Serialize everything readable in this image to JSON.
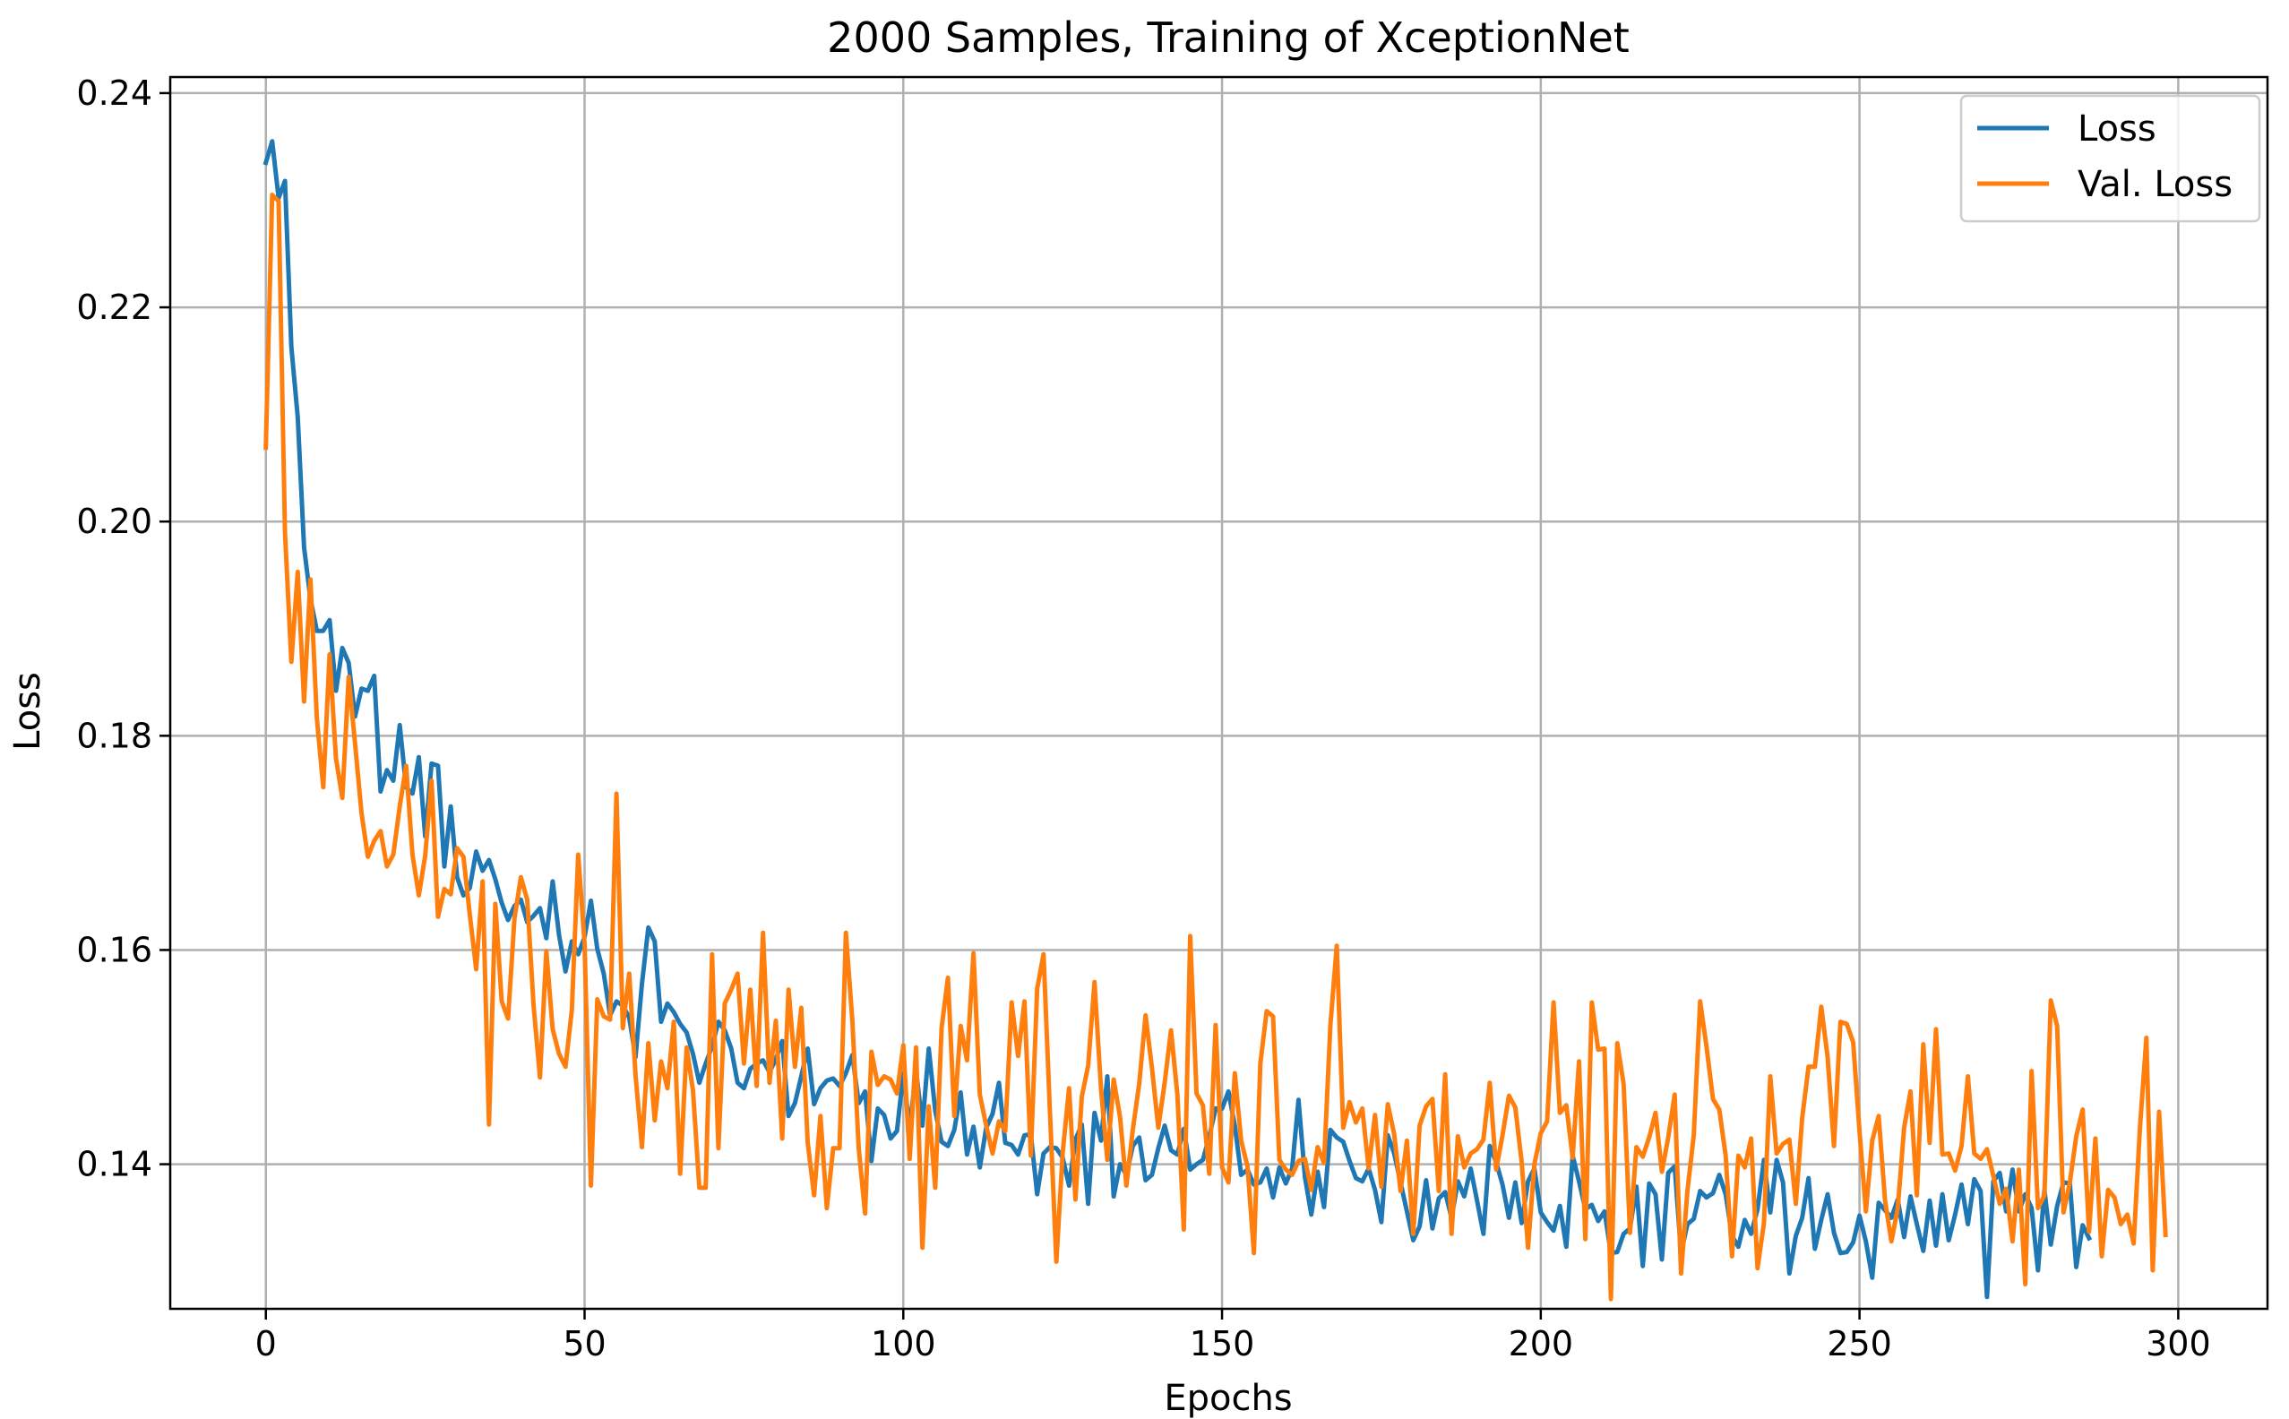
{
  "chart_data": {
    "type": "line",
    "title": "2000 Samples, Training of XceptionNet",
    "xlabel": "Epochs",
    "ylabel": "Loss",
    "xlim": [
      -15,
      314
    ],
    "ylim": [
      0.1265,
      0.2415
    ],
    "xticks": [
      0,
      50,
      100,
      150,
      200,
      250,
      300
    ],
    "yticks": [
      0.14,
      0.16,
      0.18,
      0.2,
      0.22,
      0.24
    ],
    "xtick_labels": [
      "0",
      "50",
      "100",
      "150",
      "200",
      "250",
      "300"
    ],
    "ytick_labels": [
      "0.14",
      "0.16",
      "0.18",
      "0.20",
      "0.22",
      "0.24"
    ],
    "grid": true,
    "legend_position": "top-right",
    "x_start": 0,
    "x_step": 1,
    "series": [
      {
        "name": "Loss",
        "color": "#1f77b4",
        "values": [
          0.2335,
          0.2355,
          0.2302,
          0.2318,
          0.2163,
          0.2098,
          0.1976,
          0.1928,
          0.1898,
          0.1898,
          0.1908,
          0.1842,
          0.1882,
          0.1868,
          0.1818,
          0.1844,
          0.1842,
          0.1856,
          0.1748,
          0.1768,
          0.1758,
          0.181,
          0.1752,
          0.1746,
          0.178,
          0.1706,
          0.1774,
          0.1772,
          0.1678,
          0.1734,
          0.1668,
          0.1651,
          0.1658,
          0.1692,
          0.1674,
          0.1684,
          0.1666,
          0.1644,
          0.1628,
          0.1641,
          0.1647,
          0.1626,
          0.1632,
          0.1639,
          0.1611,
          0.1664,
          0.1614,
          0.158,
          0.1608,
          0.1596,
          0.1612,
          0.1646,
          0.1601,
          0.1578,
          0.1539,
          0.1552,
          0.1548,
          0.1537,
          0.15,
          0.1568,
          0.1621,
          0.1608,
          0.1533,
          0.155,
          0.1542,
          0.1531,
          0.1523,
          0.1503,
          0.1476,
          0.1494,
          0.151,
          0.1533,
          0.1525,
          0.1508,
          0.1476,
          0.1471,
          0.1489,
          0.1494,
          0.1497,
          0.1486,
          0.1498,
          0.1515,
          0.1445,
          0.1457,
          0.1482,
          0.1508,
          0.1456,
          0.1471,
          0.1478,
          0.148,
          0.1473,
          0.1485,
          0.1502,
          0.1457,
          0.1468,
          0.1403,
          0.1452,
          0.1446,
          0.1424,
          0.1431,
          0.1485,
          0.1433,
          0.1488,
          0.1436,
          0.1508,
          0.145,
          0.1421,
          0.1417,
          0.1432,
          0.1467,
          0.1409,
          0.1435,
          0.1397,
          0.1434,
          0.1447,
          0.1476,
          0.142,
          0.1418,
          0.1409,
          0.1427,
          0.1428,
          0.1372,
          0.141,
          0.1416,
          0.1415,
          0.1406,
          0.138,
          0.1423,
          0.1437,
          0.1363,
          0.1448,
          0.1422,
          0.1482,
          0.137,
          0.14,
          0.139,
          0.1417,
          0.1425,
          0.1385,
          0.139,
          0.1415,
          0.1436,
          0.1413,
          0.1409,
          0.1433,
          0.1395,
          0.14,
          0.1404,
          0.1426,
          0.1452,
          0.1452,
          0.1468,
          0.1436,
          0.139,
          0.1395,
          0.1381,
          0.1383,
          0.1396,
          0.1369,
          0.1397,
          0.1382,
          0.1396,
          0.146,
          0.1388,
          0.1353,
          0.1393,
          0.136,
          0.1432,
          0.1425,
          0.1421,
          0.1403,
          0.1387,
          0.1384,
          0.1396,
          0.1376,
          0.1346,
          0.1427,
          0.141,
          0.1383,
          0.1356,
          0.1329,
          0.1342,
          0.1385,
          0.134,
          0.1368,
          0.1374,
          0.135,
          0.1384,
          0.137,
          0.1396,
          0.1366,
          0.1335,
          0.1417,
          0.1402,
          0.1381,
          0.135,
          0.1383,
          0.1345,
          0.1384,
          0.1396,
          0.1355,
          0.1346,
          0.1338,
          0.1361,
          0.1323,
          0.1408,
          0.1384,
          0.1358,
          0.1362,
          0.1347,
          0.1356,
          0.1317,
          0.1318,
          0.1335,
          0.134,
          0.1379,
          0.1305,
          0.1382,
          0.1372,
          0.1311,
          0.1392,
          0.1398,
          0.1317,
          0.1344,
          0.1349,
          0.1375,
          0.1369,
          0.1373,
          0.139,
          0.1372,
          0.1333,
          0.1323,
          0.1348,
          0.1335,
          0.1358,
          0.1404,
          0.1355,
          0.1404,
          0.1383,
          0.1298,
          0.1333,
          0.135,
          0.1387,
          0.1321,
          0.1348,
          0.1372,
          0.1336,
          0.1317,
          0.1318,
          0.1327,
          0.1352,
          0.1328,
          0.1294,
          0.1364,
          0.1357,
          0.135,
          0.1367,
          0.1332,
          0.137,
          0.1344,
          0.1319,
          0.1366,
          0.1324,
          0.1372,
          0.1329,
          0.1353,
          0.1381,
          0.1344,
          0.1386,
          0.1375,
          0.1276,
          0.1384,
          0.1392,
          0.1356,
          0.1395,
          0.1356,
          0.1372,
          0.1359,
          0.1301,
          0.1376,
          0.1325,
          0.1361,
          0.1383,
          0.1382,
          0.1304,
          0.1343,
          0.1331
        ],
        "x_end": 299
      },
      {
        "name": "Val. Loss",
        "color": "#ff7f0e",
        "values": [
          0.2069,
          0.2305,
          0.2299,
          0.199,
          0.1869,
          0.1953,
          0.1832,
          0.1946,
          0.1816,
          0.1752,
          0.1876,
          0.1779,
          0.1742,
          0.1855,
          0.1793,
          0.1728,
          0.1687,
          0.1702,
          0.1711,
          0.1678,
          0.1689,
          0.1734,
          0.1772,
          0.1689,
          0.1651,
          0.1688,
          0.1758,
          0.1631,
          0.1657,
          0.1652,
          0.1695,
          0.1687,
          0.1633,
          0.1582,
          0.1664,
          0.1437,
          0.1643,
          0.1552,
          0.1536,
          0.1629,
          0.1668,
          0.1647,
          0.1548,
          0.1481,
          0.1599,
          0.1526,
          0.1503,
          0.1491,
          0.1544,
          0.1689,
          0.1606,
          0.138,
          0.1554,
          0.1538,
          0.1535,
          0.1746,
          0.1527,
          0.1578,
          0.1483,
          0.1416,
          0.1513,
          0.1441,
          0.1496,
          0.1471,
          0.1533,
          0.1391,
          0.1509,
          0.1469,
          0.1378,
          0.1378,
          0.1596,
          0.1415,
          0.155,
          0.1563,
          0.1578,
          0.1494,
          0.1563,
          0.1473,
          0.1616,
          0.1476,
          0.1534,
          0.1424,
          0.1563,
          0.1491,
          0.1546,
          0.142,
          0.1371,
          0.1445,
          0.1359,
          0.1415,
          0.1415,
          0.1616,
          0.1534,
          0.1415,
          0.1354,
          0.1505,
          0.1474,
          0.1482,
          0.1479,
          0.1466,
          0.1511,
          0.1405,
          0.1509,
          0.1322,
          0.1454,
          0.1378,
          0.1527,
          0.1574,
          0.1445,
          0.1529,
          0.1497,
          0.1597,
          0.1465,
          0.1436,
          0.141,
          0.144,
          0.1431,
          0.1551,
          0.1501,
          0.1552,
          0.1408,
          0.1564,
          0.1596,
          0.145,
          0.1309,
          0.1411,
          0.1471,
          0.1367,
          0.1463,
          0.1492,
          0.157,
          0.1471,
          0.1404,
          0.1479,
          0.1444,
          0.138,
          0.1432,
          0.1475,
          0.1539,
          0.149,
          0.1434,
          0.1476,
          0.1525,
          0.1465,
          0.1339,
          0.1613,
          0.1466,
          0.1455,
          0.1391,
          0.153,
          0.1397,
          0.1383,
          0.1485,
          0.1422,
          0.1398,
          0.1317,
          0.1494,
          0.1543,
          0.1538,
          0.1404,
          0.1395,
          0.139,
          0.1403,
          0.1405,
          0.1376,
          0.1416,
          0.1401,
          0.153,
          0.1604,
          0.1434,
          0.1458,
          0.1439,
          0.1452,
          0.1396,
          0.1446,
          0.1379,
          0.1456,
          0.1428,
          0.1375,
          0.1422,
          0.1335,
          0.1436,
          0.1454,
          0.1461,
          0.1375,
          0.1484,
          0.1335,
          0.1426,
          0.1397,
          0.141,
          0.1414,
          0.1423,
          0.1476,
          0.1395,
          0.1427,
          0.1464,
          0.1453,
          0.1402,
          0.1322,
          0.14,
          0.1429,
          0.144,
          0.1551,
          0.1448,
          0.1455,
          0.1406,
          0.1496,
          0.133,
          0.1551,
          0.1507,
          0.1508,
          0.1274,
          0.1513,
          0.1475,
          0.1336,
          0.1416,
          0.1407,
          0.1425,
          0.1448,
          0.1393,
          0.1425,
          0.1465,
          0.1298,
          0.1375,
          0.1427,
          0.1552,
          0.151,
          0.1461,
          0.1451,
          0.1408,
          0.1314,
          0.1408,
          0.1397,
          0.1424,
          0.1303,
          0.1345,
          0.1482,
          0.141,
          0.1419,
          0.1423,
          0.1363,
          0.1443,
          0.1491,
          0.1491,
          0.1547,
          0.15,
          0.1417,
          0.1533,
          0.1531,
          0.1514,
          0.1431,
          0.1356,
          0.1422,
          0.1445,
          0.1366,
          0.1328,
          0.1359,
          0.1434,
          0.1468,
          0.1371,
          0.1512,
          0.142,
          0.1526,
          0.1409,
          0.141,
          0.1394,
          0.1417,
          0.1482,
          0.141,
          0.1405,
          0.1414,
          0.1389,
          0.1363,
          0.1377,
          0.1328,
          0.1395,
          0.1288,
          0.1487,
          0.1359,
          0.1371,
          0.1553,
          0.1529,
          0.1355,
          0.1383,
          0.1426,
          0.1451,
          0.1337,
          0.1424,
          0.1314,
          0.1376,
          0.1369,
          0.1344,
          0.1353,
          0.1326,
          0.1435,
          0.1518,
          0.1301,
          0.1449,
          0.1334
        ],
        "x_end": 299
      }
    ]
  }
}
